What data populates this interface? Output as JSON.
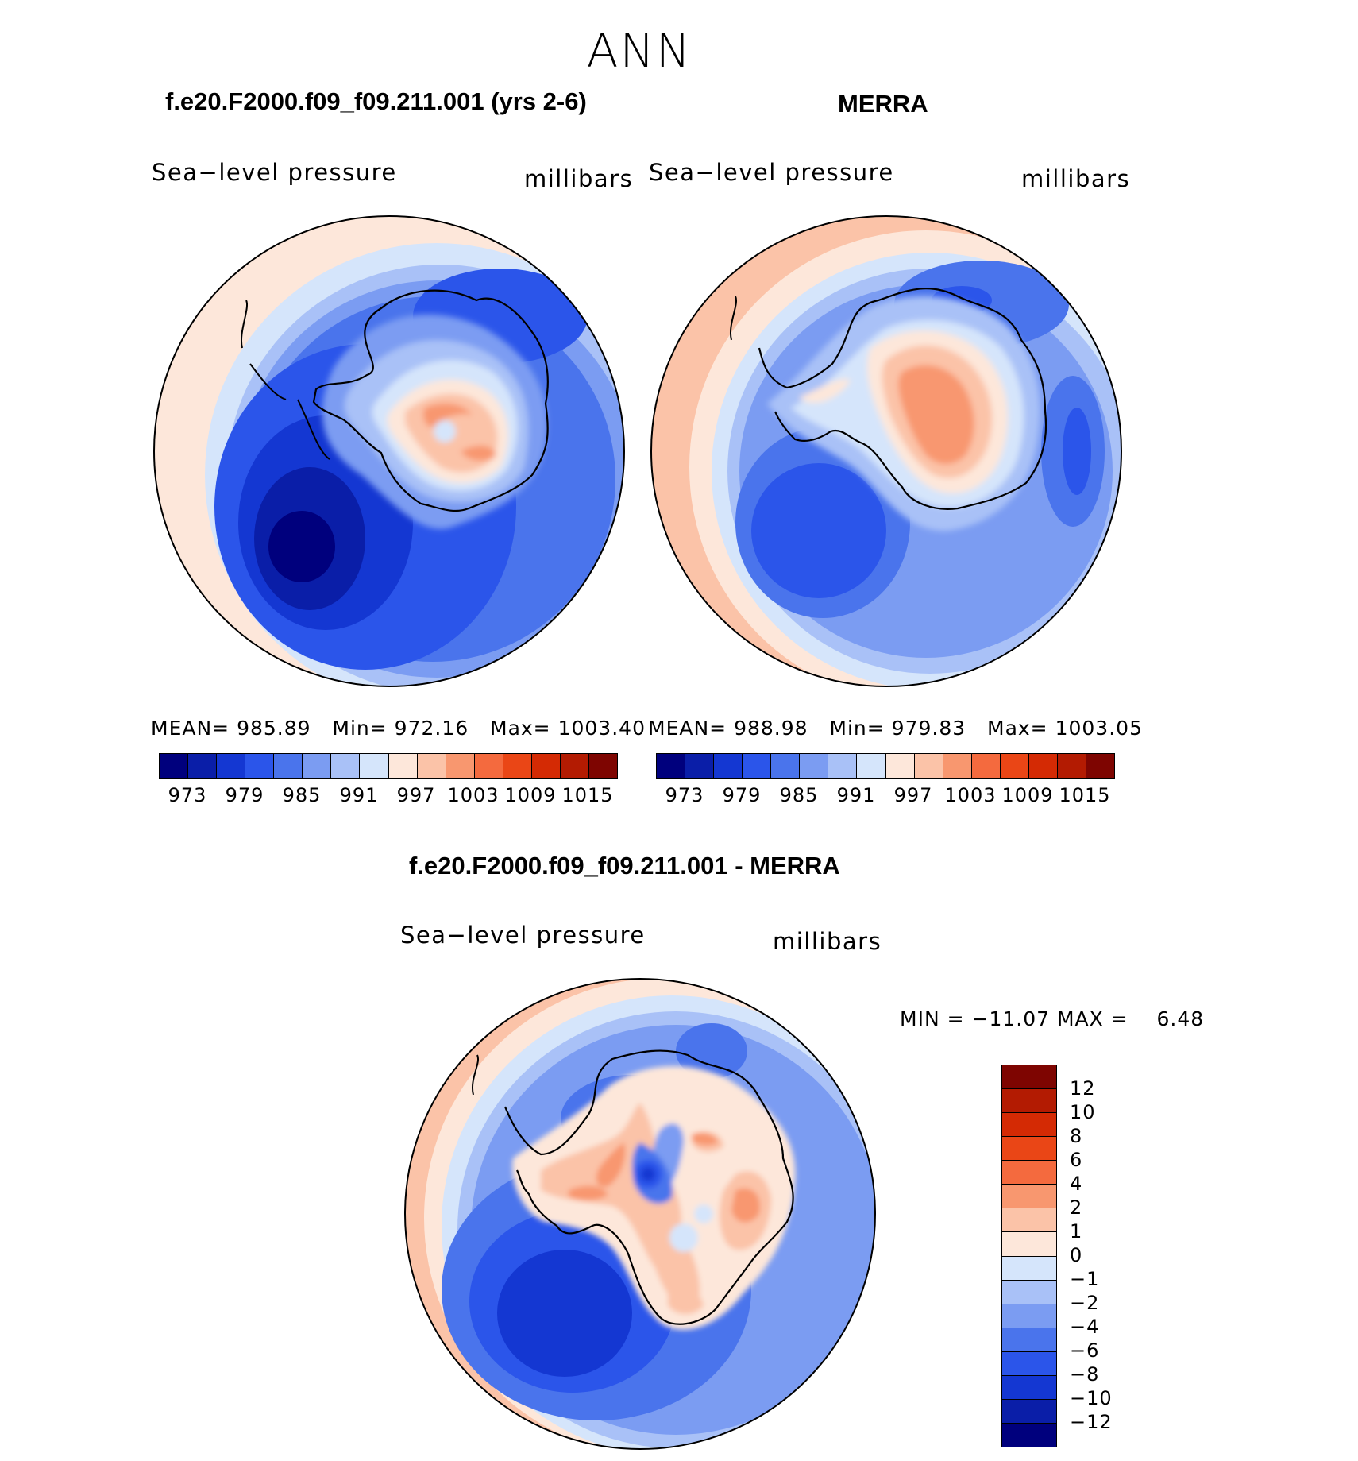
{
  "title": "ANN",
  "panels": [
    {
      "title": "f.e20.F2000.f09_f09.211.001 (yrs 2-6)",
      "variable": "Sea−level pressure",
      "units": "millibars",
      "stats": {
        "mean_label": "MEAN=",
        "mean": "985.89",
        "min_label": "Min=",
        "min": "972.16",
        "max_label": "Max=",
        "max": "1003.40"
      }
    },
    {
      "title": "MERRA",
      "variable": "Sea−level pressure",
      "units": "millibars",
      "stats": {
        "mean_label": "MEAN=",
        "mean": "988.98",
        "min_label": "Min=",
        "min": "979.83",
        "max_label": "Max=",
        "max": "1003.05"
      }
    },
    {
      "title": "f.e20.F2000.f09_f09.211.001 - MERRA",
      "variable": "Sea−level pressure",
      "units": "millibars",
      "stats": {
        "min_label": "MIN =",
        "min": "−11.07",
        "max_label": "MAX =",
        "max": "6.48"
      }
    }
  ],
  "abs_colorbar": {
    "colors": [
      "#00007d",
      "#0a1ea8",
      "#1437d2",
      "#2b55ea",
      "#4a74ec",
      "#7b9cf2",
      "#a9c1f7",
      "#d5e5fb",
      "#fde7da",
      "#fbc3a8",
      "#f8976f",
      "#f46a3e",
      "#ea4616",
      "#d42a04",
      "#b31b02",
      "#7e0501"
    ],
    "ticks": [
      "973",
      "979",
      "985",
      "991",
      "997",
      "1003",
      "1009",
      "1015"
    ]
  },
  "diff_colorbar": {
    "colors": [
      "#7e0501",
      "#b31b02",
      "#d42a04",
      "#ea4616",
      "#f46a3e",
      "#f8976f",
      "#fbc3a8",
      "#fde7da",
      "#d5e5fb",
      "#a9c1f7",
      "#7b9cf2",
      "#4a74ec",
      "#2b55ea",
      "#1437d2",
      "#0a1ea8",
      "#00007d"
    ],
    "ticks": [
      "12",
      "10",
      "8",
      "6",
      "4",
      "2",
      "1",
      "0",
      "−1",
      "−2",
      "−4",
      "−6",
      "−8",
      "−10",
      "−12"
    ]
  }
}
